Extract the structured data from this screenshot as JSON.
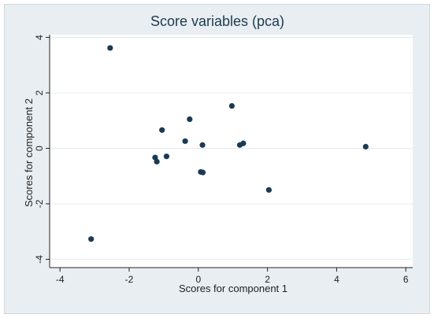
{
  "chart_data": {
    "type": "scatter",
    "title": "Score variables (pca)",
    "xlabel": "Scores for component 1",
    "ylabel": "Scores for component 2",
    "xlim": [
      -4.3,
      6.2
    ],
    "ylim": [
      -4.3,
      4.1
    ],
    "xticks": [
      -4,
      -2,
      0,
      2,
      4,
      6
    ],
    "yticks": [
      -4,
      -2,
      0,
      2,
      4
    ],
    "xtick_labels": [
      "-4",
      "-2",
      "0",
      "2",
      "4",
      "6"
    ],
    "ytick_labels": [
      "-4",
      "-2",
      "0",
      "2",
      "4"
    ],
    "grid": "horizontal",
    "points": [
      {
        "x": -2.55,
        "y": 3.62
      },
      {
        "x": -3.1,
        "y": -3.27
      },
      {
        "x": -1.05,
        "y": 0.66
      },
      {
        "x": -0.25,
        "y": 1.05
      },
      {
        "x": 0.97,
        "y": 1.53
      },
      {
        "x": -0.38,
        "y": 0.26
      },
      {
        "x": 0.12,
        "y": 0.12
      },
      {
        "x": 1.2,
        "y": 0.12
      },
      {
        "x": 1.3,
        "y": 0.18
      },
      {
        "x": -1.25,
        "y": -0.33
      },
      {
        "x": -1.2,
        "y": -0.48
      },
      {
        "x": -0.92,
        "y": -0.29
      },
      {
        "x": 0.07,
        "y": -0.85
      },
      {
        "x": 0.13,
        "y": -0.87
      },
      {
        "x": 2.04,
        "y": -1.5
      },
      {
        "x": 4.84,
        "y": 0.06
      }
    ],
    "colors": {
      "outer_bg": "#e8eef2",
      "plot_bg": "#ffffff",
      "marker": "#1a3a55",
      "grid": "#e6ebee",
      "axis": "#222222",
      "title": "#1e3a4f"
    }
  }
}
